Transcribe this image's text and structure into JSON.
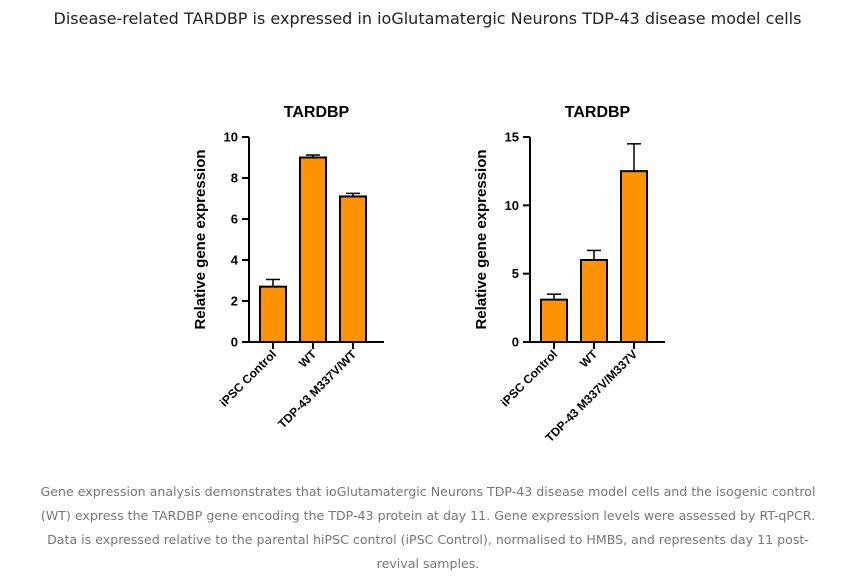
{
  "page": {
    "title": "Disease-related TARDBP is expressed in ioGlutamatergic Neurons TDP-43 disease model cells",
    "caption": "Gene expression analysis demonstrates that ioGlutamatergic Neurons TDP-43 disease model cells  and the isogenic control (WT) express the TARDBP gene encoding the TDP-43 protein at day 11. Gene expression levels were assessed by RT-qPCR. Data is expressed relative to the parental hiPSC control (iPSC Control), normalised to HMBS, and represents day 11 post-revival samples."
  },
  "colors": {
    "bar": "#ff9200",
    "axis": "#000000"
  },
  "chart_data": [
    {
      "type": "bar",
      "title": "TARDBP",
      "xlabel": "",
      "ylabel": "Relative gene expression",
      "categories": [
        "iPSC Control",
        "WT",
        "TDP-43 M337V/WT"
      ],
      "values": [
        2.7,
        9.0,
        7.1
      ],
      "errors": [
        0.35,
        0.12,
        0.15
      ],
      "ylim": [
        0,
        10
      ],
      "yticks": [
        0,
        2,
        4,
        6,
        8,
        10
      ],
      "grid": false,
      "legend": "none"
    },
    {
      "type": "bar",
      "title": "TARDBP",
      "xlabel": "",
      "ylabel": "Relative gene expression",
      "categories": [
        "iPSC Control",
        "WT",
        "TDP-43 M337V/M337V"
      ],
      "values": [
        3.1,
        6.0,
        12.5
      ],
      "errors": [
        0.4,
        0.7,
        2.0
      ],
      "ylim": [
        0,
        15
      ],
      "yticks": [
        0,
        5,
        10,
        15
      ],
      "grid": false,
      "legend": "none"
    }
  ]
}
